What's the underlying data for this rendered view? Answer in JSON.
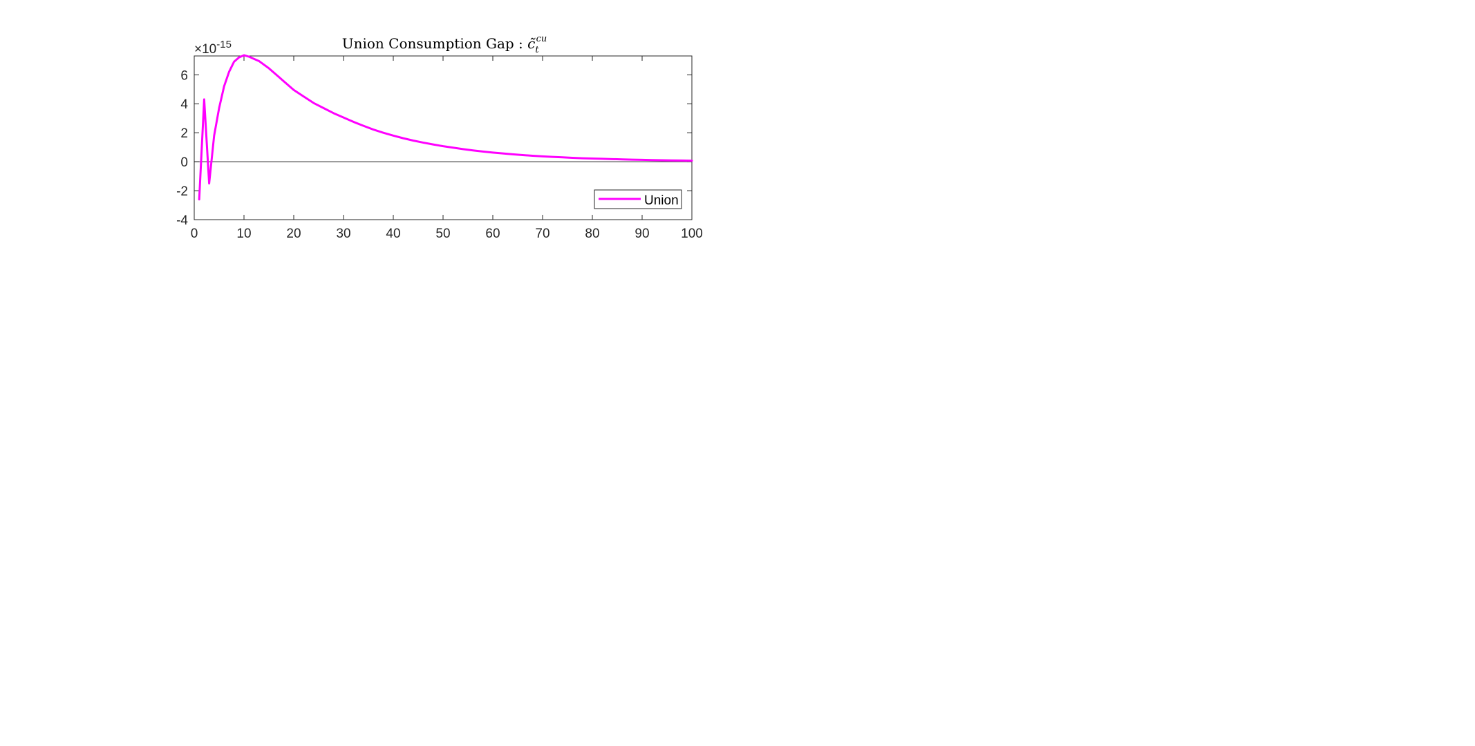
{
  "chart_data": {
    "type": "line",
    "title": "Union Consumption Gap : ",
    "title_math": {
      "symbol": "c̃",
      "subscript": "t",
      "superscript": "cu"
    },
    "xlabel": "",
    "ylabel": "",
    "xlim": [
      0,
      100
    ],
    "ylim": [
      -4,
      7.3
    ],
    "x_ticks": [
      0,
      10,
      20,
      30,
      40,
      50,
      60,
      70,
      80,
      90,
      100
    ],
    "x_tick_labels": [
      "0",
      "10",
      "20",
      "30",
      "40",
      "50",
      "60",
      "70",
      "80",
      "90",
      "100"
    ],
    "y_ticks": [
      -4,
      -2,
      0,
      2,
      4,
      6
    ],
    "y_tick_labels": [
      "-4",
      "-2",
      "0",
      "2",
      "4",
      "6"
    ],
    "y_exponent": {
      "base": "×10",
      "power": "-15"
    },
    "y_scale_note": "values shown in units of 10^-15",
    "zero_line": true,
    "grid": false,
    "legend_position": "bottom-right",
    "series": [
      {
        "name": "Union",
        "color": "#ff00ff",
        "x": [
          1,
          2,
          3,
          4,
          5,
          6,
          7,
          8,
          9,
          10,
          11,
          12,
          13,
          14,
          15,
          16,
          17,
          18,
          19,
          20,
          22,
          24,
          26,
          28,
          30,
          32,
          34,
          36,
          38,
          40,
          42,
          44,
          46,
          48,
          50,
          52,
          54,
          56,
          58,
          60,
          62,
          64,
          66,
          68,
          70,
          72,
          74,
          76,
          78,
          80,
          82,
          84,
          86,
          88,
          90,
          92,
          94,
          96,
          98,
          100
        ],
        "y": [
          -2.6,
          4.3,
          -1.5,
          1.8,
          3.7,
          5.2,
          6.2,
          6.9,
          7.2,
          7.35,
          7.25,
          7.1,
          6.95,
          6.7,
          6.45,
          6.15,
          5.85,
          5.55,
          5.25,
          4.95,
          4.5,
          4.05,
          3.7,
          3.35,
          3.05,
          2.75,
          2.48,
          2.22,
          2.0,
          1.8,
          1.62,
          1.46,
          1.32,
          1.19,
          1.07,
          0.97,
          0.87,
          0.78,
          0.7,
          0.63,
          0.57,
          0.51,
          0.46,
          0.41,
          0.37,
          0.33,
          0.3,
          0.27,
          0.24,
          0.22,
          0.2,
          0.18,
          0.16,
          0.14,
          0.13,
          0.11,
          0.1,
          0.09,
          0.08,
          0.07
        ]
      }
    ]
  }
}
